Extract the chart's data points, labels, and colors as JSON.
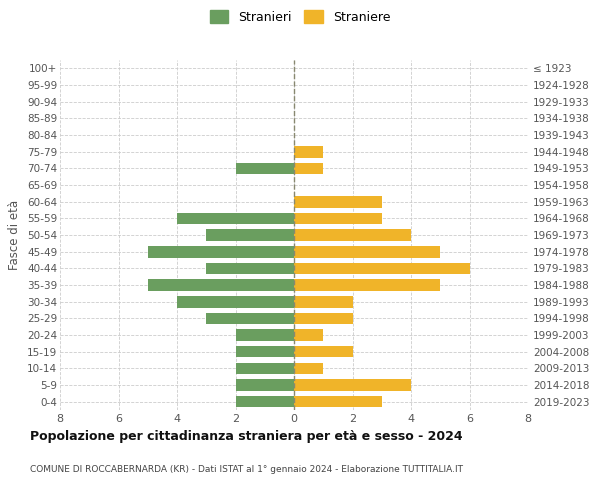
{
  "age_groups": [
    "100+",
    "95-99",
    "90-94",
    "85-89",
    "80-84",
    "75-79",
    "70-74",
    "65-69",
    "60-64",
    "55-59",
    "50-54",
    "45-49",
    "40-44",
    "35-39",
    "30-34",
    "25-29",
    "20-24",
    "15-19",
    "10-14",
    "5-9",
    "0-4"
  ],
  "birth_years": [
    "≤ 1923",
    "1924-1928",
    "1929-1933",
    "1934-1938",
    "1939-1943",
    "1944-1948",
    "1949-1953",
    "1954-1958",
    "1959-1963",
    "1964-1968",
    "1969-1973",
    "1974-1978",
    "1979-1983",
    "1984-1988",
    "1989-1993",
    "1994-1998",
    "1999-2003",
    "2004-2008",
    "2009-2013",
    "2014-2018",
    "2019-2023"
  ],
  "males": [
    0,
    0,
    0,
    0,
    0,
    0,
    2,
    0,
    0,
    4,
    3,
    5,
    3,
    5,
    4,
    3,
    2,
    2,
    2,
    2,
    2
  ],
  "females": [
    0,
    0,
    0,
    0,
    0,
    1,
    1,
    0,
    3,
    3,
    4,
    5,
    6,
    5,
    2,
    2,
    1,
    2,
    1,
    4,
    3
  ],
  "male_color": "#6a9e5f",
  "female_color": "#f0b429",
  "background_color": "#ffffff",
  "grid_color": "#cccccc",
  "title": "Popolazione per cittadinanza straniera per età e sesso - 2024",
  "subtitle": "COMUNE DI ROCCABERNARDA (KR) - Dati ISTAT al 1° gennaio 2024 - Elaborazione TUTTITALIA.IT",
  "ylabel_left": "Fasce di età",
  "legend_male": "Stranieri",
  "legend_female": "Straniere",
  "xlim": 8
}
